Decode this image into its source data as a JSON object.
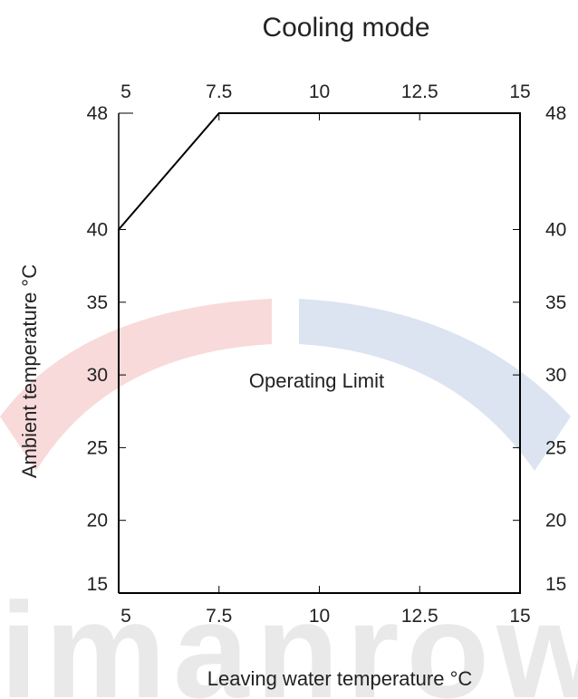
{
  "watermark": {
    "text": "imanrow",
    "colors": {
      "red": "#f7d6d6",
      "blue": "#d8e0ef",
      "gray": "#e9e9e9"
    }
  },
  "chart_data": {
    "type": "area",
    "title": "Cooling mode",
    "xlabel": "Leaving water temperature  °C",
    "ylabel": "Ambient temperature  °C",
    "xlim": [
      5,
      15
    ],
    "ylim": [
      15,
      48
    ],
    "x_ticks": [
      5,
      7.5,
      10,
      12.5,
      15
    ],
    "x_tick_labels": [
      "5",
      "7.5",
      "10",
      "12.5",
      "15"
    ],
    "y_ticks": [
      15,
      20,
      25,
      30,
      35,
      40,
      48
    ],
    "y_tick_labels": [
      "15",
      "20",
      "25",
      "30",
      "35",
      "40",
      "48"
    ],
    "mirror_axes": true,
    "grid": false,
    "series": [
      {
        "name": "Operating Limit",
        "x": [
          5,
          5,
          7.5,
          15,
          15,
          5
        ],
        "y": [
          15,
          40,
          48,
          48,
          15,
          15
        ]
      }
    ],
    "annotations": [
      {
        "text": "Operating Limit",
        "x": 10,
        "y": 30
      }
    ],
    "line_color": "#000000"
  }
}
